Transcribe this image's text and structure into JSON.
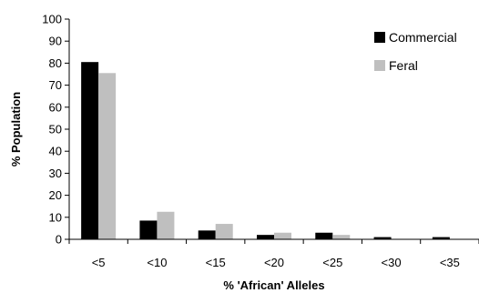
{
  "chart_data": {
    "type": "bar",
    "categories": [
      "<5",
      "<10",
      "<15",
      "<20",
      "<25",
      "<30",
      "<35"
    ],
    "series": [
      {
        "name": "Commercial",
        "color": "#000000",
        "values": [
          80.5,
          8.5,
          4,
          2,
          3,
          1,
          1
        ]
      },
      {
        "name": "Feral",
        "color": "#bfbfbf",
        "values": [
          75.5,
          12.5,
          7,
          3,
          2,
          0,
          0
        ]
      }
    ],
    "title": "",
    "xlabel": "% 'African' Alleles",
    "ylabel": "% Population",
    "ylim": [
      0,
      100
    ],
    "yticks": [
      0,
      10,
      20,
      30,
      40,
      50,
      60,
      70,
      80,
      90,
      100
    ],
    "grid": false,
    "legend_position": "top-right"
  }
}
